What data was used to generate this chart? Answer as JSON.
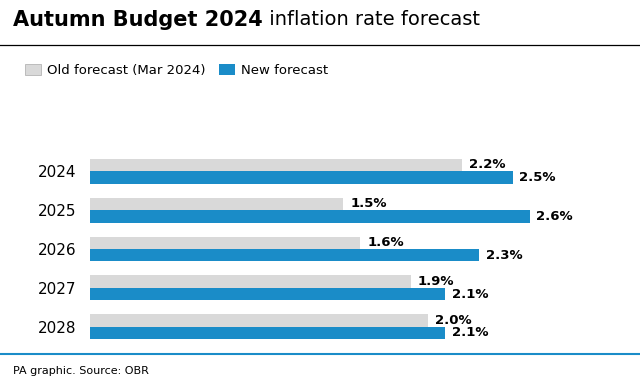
{
  "title_bold": "Autumn Budget 2024",
  "title_regular": " inflation rate forecast",
  "years": [
    "2024",
    "2025",
    "2026",
    "2027",
    "2028"
  ],
  "old_values": [
    2.2,
    1.5,
    1.6,
    1.9,
    2.0
  ],
  "new_values": [
    2.5,
    2.6,
    2.3,
    2.1,
    2.1
  ],
  "old_color": "#d9d9d9",
  "new_color": "#1a8cc8",
  "bar_height": 0.32,
  "xlim": [
    0,
    2.95
  ],
  "legend_old": "Old forecast (Mar 2024)",
  "legend_new": "New forecast",
  "source": "PA graphic. Source: OBR",
  "label_fontsize": 9.5,
  "year_fontsize": 11,
  "title_fontsize_bold": 15,
  "title_fontsize_regular": 14,
  "legend_fontsize": 9.5,
  "source_fontsize": 8,
  "background_color": "#ffffff",
  "title_line_color": "#000000",
  "source_line_color": "#1a8cc8"
}
